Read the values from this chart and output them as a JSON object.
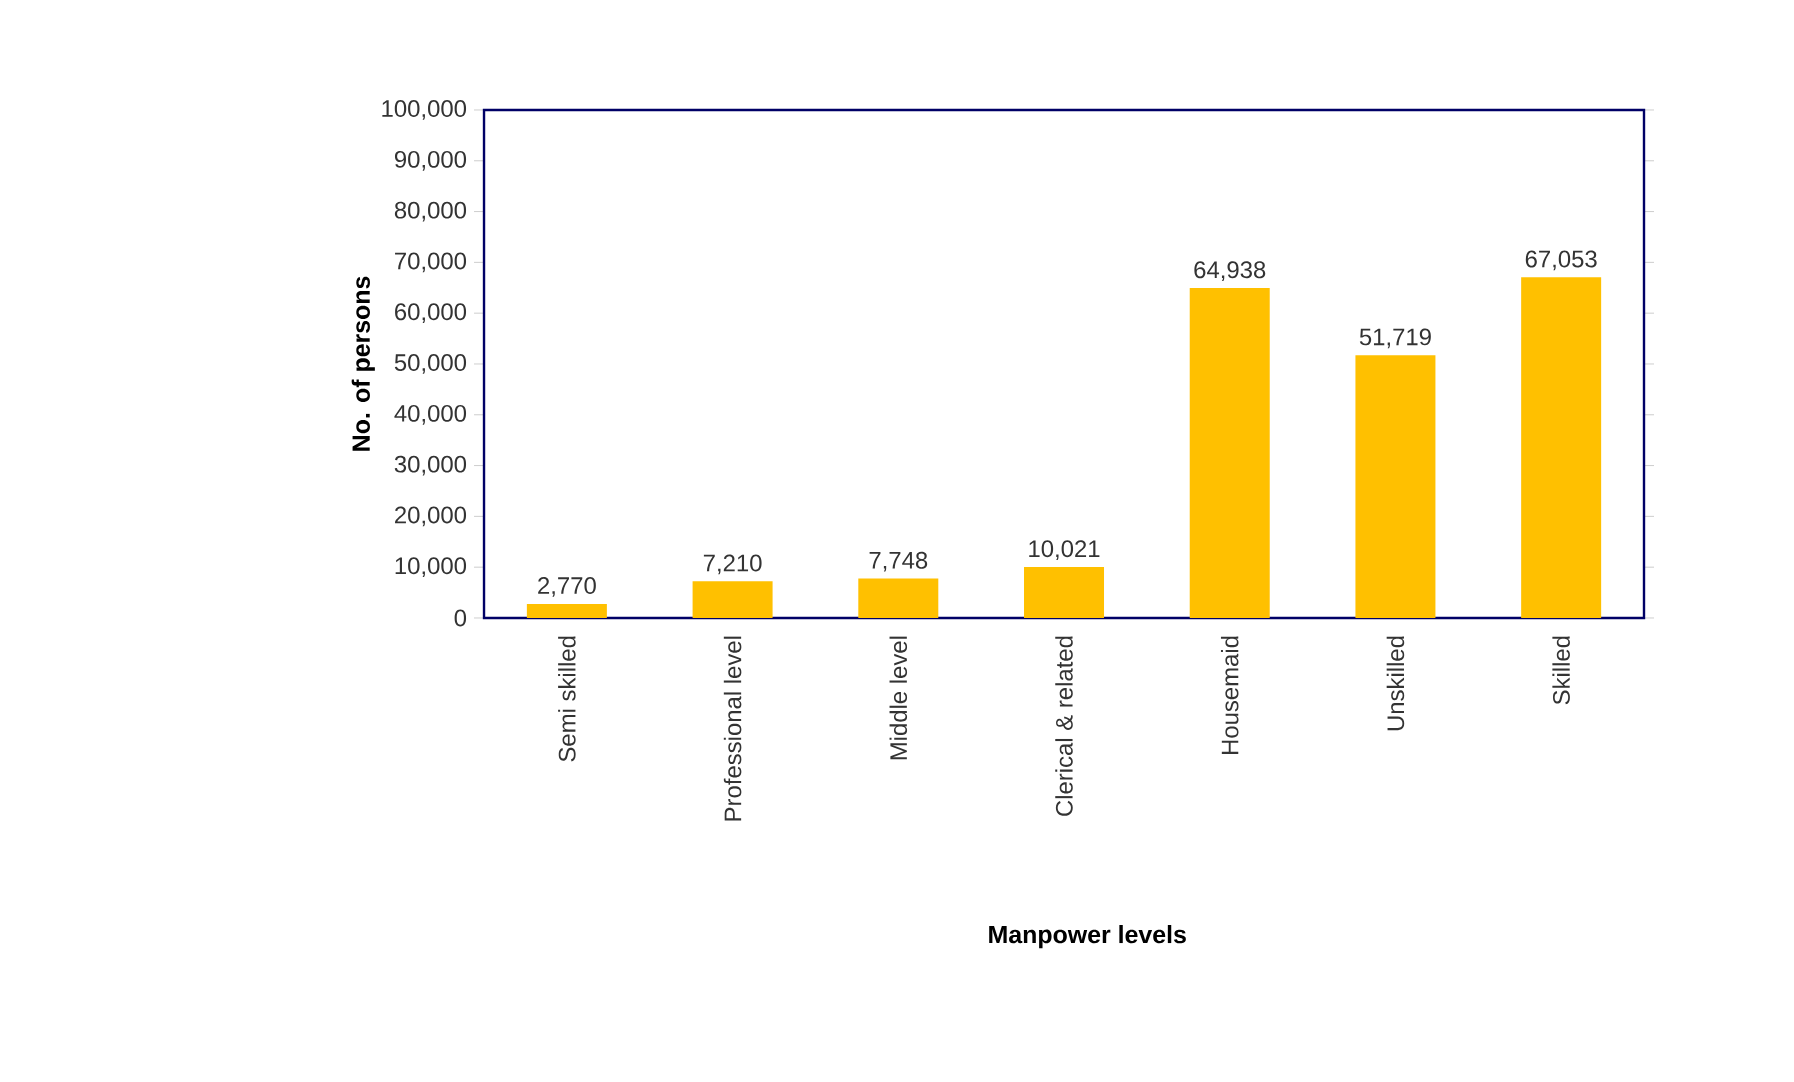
{
  "chart_data": {
    "type": "bar",
    "xlabel": "Manpower levels",
    "ylabel": "No.  of  persons",
    "categories": [
      "Semi skilled",
      "Professional level",
      "Middle level",
      "Clerical & related",
      "Housemaid",
      "Unskilled",
      "Skilled"
    ],
    "values": [
      2770,
      7210,
      7748,
      10021,
      64938,
      51719,
      67053
    ],
    "value_labels": [
      "2,770",
      "7,210",
      "7,748",
      "10,021",
      "64,938",
      "51,719",
      "67,053"
    ],
    "color": "#ffc000",
    "ylim": [
      0,
      100000
    ],
    "yticks": [
      {
        "value": 0,
        "label": "0"
      },
      {
        "value": 10000,
        "label": "10,000"
      },
      {
        "value": 20000,
        "label": "20,000"
      },
      {
        "value": 30000,
        "label": "30,000"
      },
      {
        "value": 40000,
        "label": "40,000"
      },
      {
        "value": 50000,
        "label": "50,000"
      },
      {
        "value": 60000,
        "label": "60,000"
      },
      {
        "value": 70000,
        "label": "70,000"
      },
      {
        "value": 80000,
        "label": "80,000"
      },
      {
        "value": 90000,
        "label": "90,000"
      },
      {
        "value": 100000,
        "label": "100,000"
      }
    ],
    "grid": false
  }
}
